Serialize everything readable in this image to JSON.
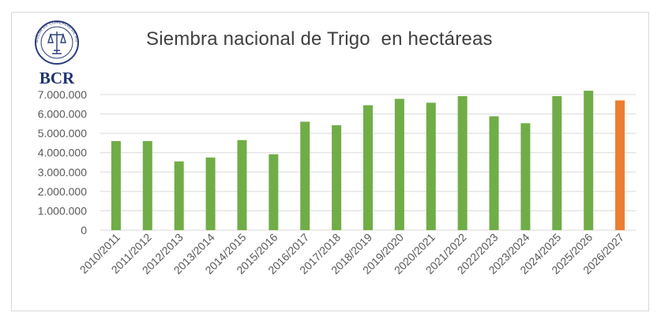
{
  "logo": {
    "text": "BCR",
    "seal_text": "BOLSA DE COMERCIO DE ROSARIO"
  },
  "chart_data": {
    "type": "bar",
    "title": "Siembra nacional de Trigo  en hectáreas",
    "xlabel": "",
    "ylabel": "",
    "ylim": [
      0,
      7000000
    ],
    "yticks": [
      {
        "value": 0,
        "label": "0"
      },
      {
        "value": 1000000,
        "label": "1.000.000"
      },
      {
        "value": 2000000,
        "label": "2.000.000"
      },
      {
        "value": 3000000,
        "label": "3.000.000"
      },
      {
        "value": 4000000,
        "label": "4.000.000"
      },
      {
        "value": 5000000,
        "label": "5.000.000"
      },
      {
        "value": 6000000,
        "label": "6.000.000"
      },
      {
        "value": 7000000,
        "label": "7.000.000"
      }
    ],
    "grid": true,
    "legend": "none",
    "categories": [
      "2010/2011",
      "2011/2012",
      "2012/2013",
      "2013/2014",
      "2014/2015",
      "2015/2016",
      "2016/2017",
      "2017/2018",
      "2018/2019",
      "2019/2020",
      "2020/2021",
      "2021/2022",
      "2022/2023",
      "2023/2024",
      "2024/2025",
      "2025/2026",
      "2026/2027"
    ],
    "values": [
      4600000,
      4600000,
      3550000,
      3750000,
      4650000,
      3920000,
      5600000,
      5420000,
      6450000,
      6780000,
      6580000,
      6920000,
      5880000,
      5520000,
      6920000,
      7200000,
      6700000
    ],
    "colors": {
      "default": "#70ad47",
      "highlight": "#ed7d31"
    },
    "highlight_index": 16
  }
}
